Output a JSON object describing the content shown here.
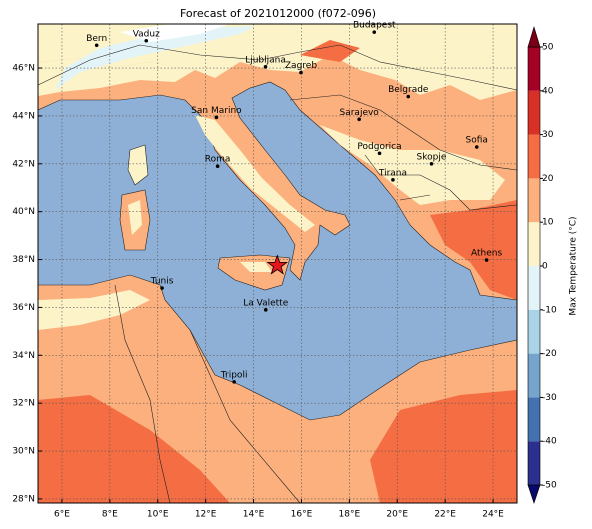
{
  "title": "Forecast of 2021012000 (f072-096)",
  "map": {
    "xlim": [
      5,
      25
    ],
    "ylim": [
      27.83,
      47.84
    ],
    "xticks": [
      {
        "value": 6,
        "label": "6°E"
      },
      {
        "value": 8,
        "label": "8°E"
      },
      {
        "value": 10,
        "label": "10°E"
      },
      {
        "value": 12,
        "label": "12°E"
      },
      {
        "value": 14,
        "label": "14°E"
      },
      {
        "value": 16,
        "label": "16°E"
      },
      {
        "value": 18,
        "label": "18°E"
      },
      {
        "value": 20,
        "label": "20°E"
      },
      {
        "value": 22,
        "label": "22°E"
      },
      {
        "value": 24,
        "label": "24°E"
      }
    ],
    "yticks": [
      {
        "value": 28,
        "label": "28°N"
      },
      {
        "value": 30,
        "label": "30°N"
      },
      {
        "value": 32,
        "label": "32°N"
      },
      {
        "value": 34,
        "label": "34°N"
      },
      {
        "value": 36,
        "label": "36°N"
      },
      {
        "value": 38,
        "label": "38°N"
      },
      {
        "value": 40,
        "label": "40°N"
      },
      {
        "value": 42,
        "label": "42°N"
      },
      {
        "value": 44,
        "label": "44°N"
      },
      {
        "value": 46,
        "label": "46°N"
      }
    ],
    "grid": true,
    "cities": [
      {
        "name": "Bern",
        "lon": 7.45,
        "lat": 46.95
      },
      {
        "name": "Vaduz",
        "lon": 9.52,
        "lat": 47.14
      },
      {
        "name": "Budapest",
        "lon": 19.04,
        "lat": 47.5
      },
      {
        "name": "Ljubljana",
        "lon": 14.5,
        "lat": 46.05
      },
      {
        "name": "Zagreb",
        "lon": 15.98,
        "lat": 45.81
      },
      {
        "name": "Belgrade",
        "lon": 20.46,
        "lat": 44.81
      },
      {
        "name": "San Marino",
        "lon": 12.45,
        "lat": 43.94
      },
      {
        "name": "Sarajevo",
        "lon": 18.41,
        "lat": 43.86
      },
      {
        "name": "Sofia",
        "lon": 23.32,
        "lat": 42.7
      },
      {
        "name": "Podgorica",
        "lon": 19.26,
        "lat": 42.44
      },
      {
        "name": "Skopje",
        "lon": 21.43,
        "lat": 42.0
      },
      {
        "name": "Roma",
        "lon": 12.5,
        "lat": 41.9
      },
      {
        "name": "Tirana",
        "lon": 19.82,
        "lat": 41.33
      },
      {
        "name": "Athens",
        "lon": 23.73,
        "lat": 37.98
      },
      {
        "name": "Tunis",
        "lon": 10.18,
        "lat": 36.81
      },
      {
        "name": "La Valette",
        "lon": 14.51,
        "lat": 35.9
      },
      {
        "name": "Tripoli",
        "lon": 13.19,
        "lat": 32.89
      }
    ],
    "marker": {
      "lon": 14.99,
      "lat": 37.75,
      "color": "#e8141c"
    }
  },
  "colorbar": {
    "label": "Max Temperature (°C)",
    "ticks": [
      -50,
      -40,
      -30,
      -20,
      -10,
      0,
      10,
      20,
      30,
      40,
      50
    ],
    "colors": [
      "#2b2f8e",
      "#4472b0",
      "#75a4cd",
      "#a9d4e6",
      "#e3f4f8",
      "#fcf3c9",
      "#fcb07d",
      "#f46d43",
      "#d73027",
      "#a50026"
    ],
    "under_color": "#0a0a6b",
    "over_color": "#7a0017"
  }
}
